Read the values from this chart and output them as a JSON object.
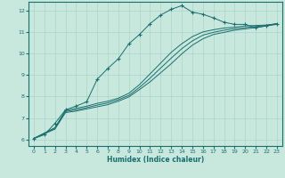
{
  "xlabel": "Humidex (Indice chaleur)",
  "xlim": [
    -0.5,
    23.5
  ],
  "ylim": [
    5.7,
    12.4
  ],
  "yticks": [
    6,
    7,
    8,
    9,
    10,
    11,
    12
  ],
  "xticks": [
    0,
    1,
    2,
    3,
    4,
    5,
    6,
    7,
    8,
    9,
    10,
    11,
    12,
    13,
    14,
    15,
    16,
    17,
    18,
    19,
    20,
    21,
    22,
    23
  ],
  "bg_color": "#c8e8de",
  "line_color": "#1a6e6e",
  "grid_color": "#aad4c8",
  "lines": [
    {
      "x": [
        0,
        1,
        2,
        3,
        4,
        5,
        6,
        7,
        8,
        9,
        10,
        11,
        12,
        13,
        14,
        15,
        16,
        17,
        18,
        19,
        20,
        21,
        22,
        23
      ],
      "y": [
        6.05,
        6.22,
        6.75,
        7.38,
        7.55,
        7.75,
        8.8,
        9.3,
        9.75,
        10.45,
        10.88,
        11.38,
        11.78,
        12.05,
        12.22,
        11.92,
        11.82,
        11.65,
        11.45,
        11.35,
        11.35,
        11.2,
        11.28,
        11.35
      ],
      "marker": "+"
    },
    {
      "x": [
        0,
        2,
        3,
        4,
        5,
        6,
        7,
        8,
        9,
        10,
        11,
        12,
        13,
        14,
        15,
        16,
        17,
        18,
        19,
        20,
        21,
        22,
        23
      ],
      "y": [
        6.05,
        6.55,
        7.35,
        7.45,
        7.55,
        7.68,
        7.78,
        7.92,
        8.15,
        8.55,
        9.05,
        9.55,
        10.05,
        10.45,
        10.78,
        11.0,
        11.1,
        11.18,
        11.22,
        11.28,
        11.3,
        11.32,
        11.38
      ],
      "marker": null
    },
    {
      "x": [
        0,
        2,
        3,
        4,
        5,
        6,
        7,
        8,
        9,
        10,
        11,
        12,
        13,
        14,
        15,
        16,
        17,
        18,
        19,
        20,
        21,
        22,
        23
      ],
      "y": [
        6.05,
        6.52,
        7.3,
        7.38,
        7.48,
        7.6,
        7.7,
        7.85,
        8.05,
        8.42,
        8.85,
        9.32,
        9.78,
        10.22,
        10.58,
        10.85,
        10.98,
        11.08,
        11.15,
        11.2,
        11.25,
        11.3,
        11.38
      ],
      "marker": null
    },
    {
      "x": [
        0,
        2,
        3,
        4,
        5,
        6,
        7,
        8,
        9,
        10,
        11,
        12,
        13,
        14,
        15,
        16,
        17,
        18,
        19,
        20,
        21,
        22,
        23
      ],
      "y": [
        6.05,
        6.48,
        7.25,
        7.32,
        7.42,
        7.52,
        7.62,
        7.78,
        7.98,
        8.32,
        8.68,
        9.1,
        9.52,
        9.98,
        10.38,
        10.68,
        10.88,
        10.98,
        11.08,
        11.14,
        11.2,
        11.28,
        11.38
      ],
      "marker": null
    }
  ]
}
